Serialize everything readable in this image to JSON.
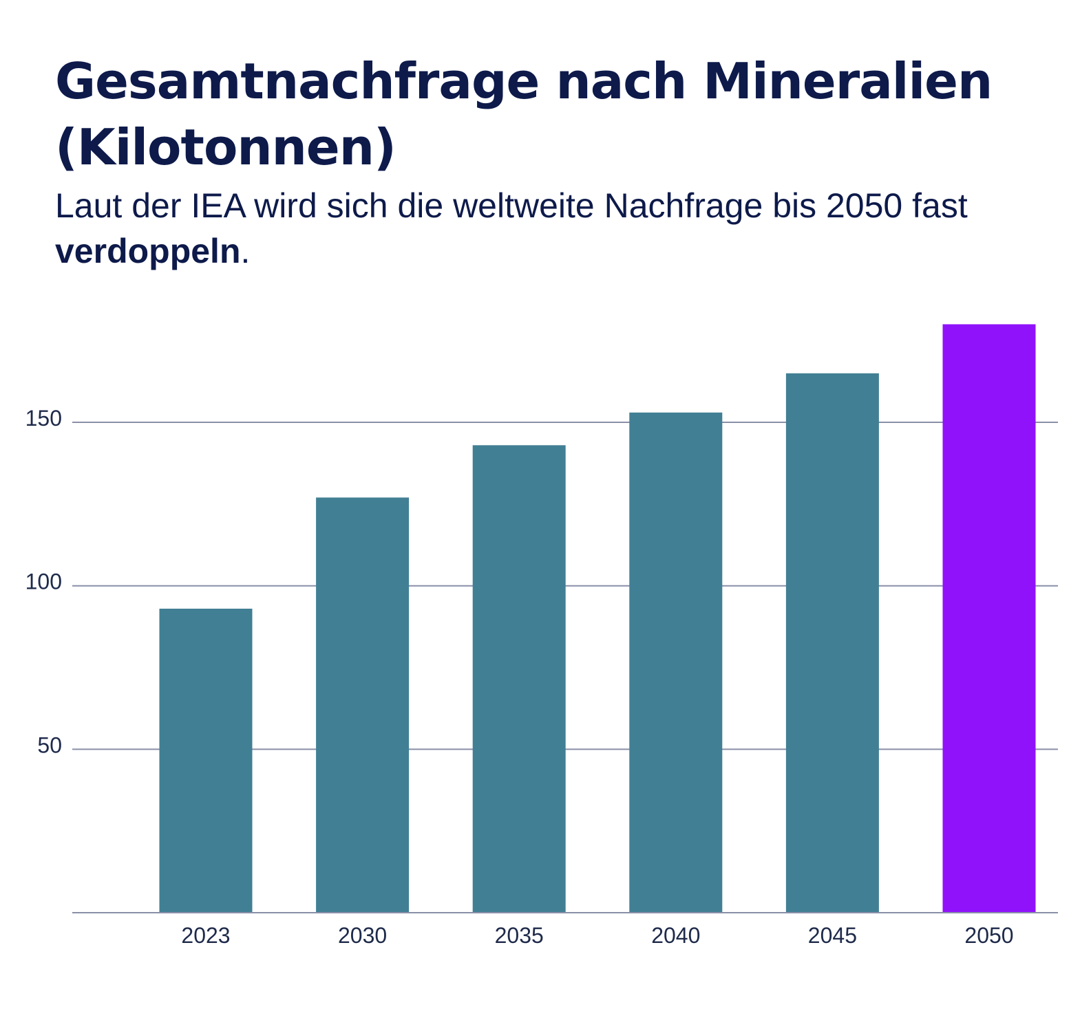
{
  "chart_data": {
    "type": "bar",
    "title": "Gesamtnachfrage nach Mineralien (Kilotonnen)",
    "subtitle": {
      "prefix": "Laut der IEA wird sich die weltweite Nachfrage bis 2050 fast ",
      "emphasis": "verdoppeln",
      "suffix": "."
    },
    "xlabel": "",
    "ylabel": "",
    "categories": [
      "2023",
      "2030",
      "2035",
      "2040",
      "2045",
      "2050"
    ],
    "values": [
      93,
      127,
      143,
      153,
      165,
      180
    ],
    "y_ticks": [
      50,
      100,
      150
    ],
    "ylim": [
      0,
      180
    ],
    "grid": true,
    "colors": {
      "bar": "#417f94",
      "highlight_bar": "#9012fa",
      "highlight_category": "2050",
      "gridline": "#8a8fa8",
      "axis": "#8a8fa8",
      "text": "#0d1a4a"
    }
  }
}
